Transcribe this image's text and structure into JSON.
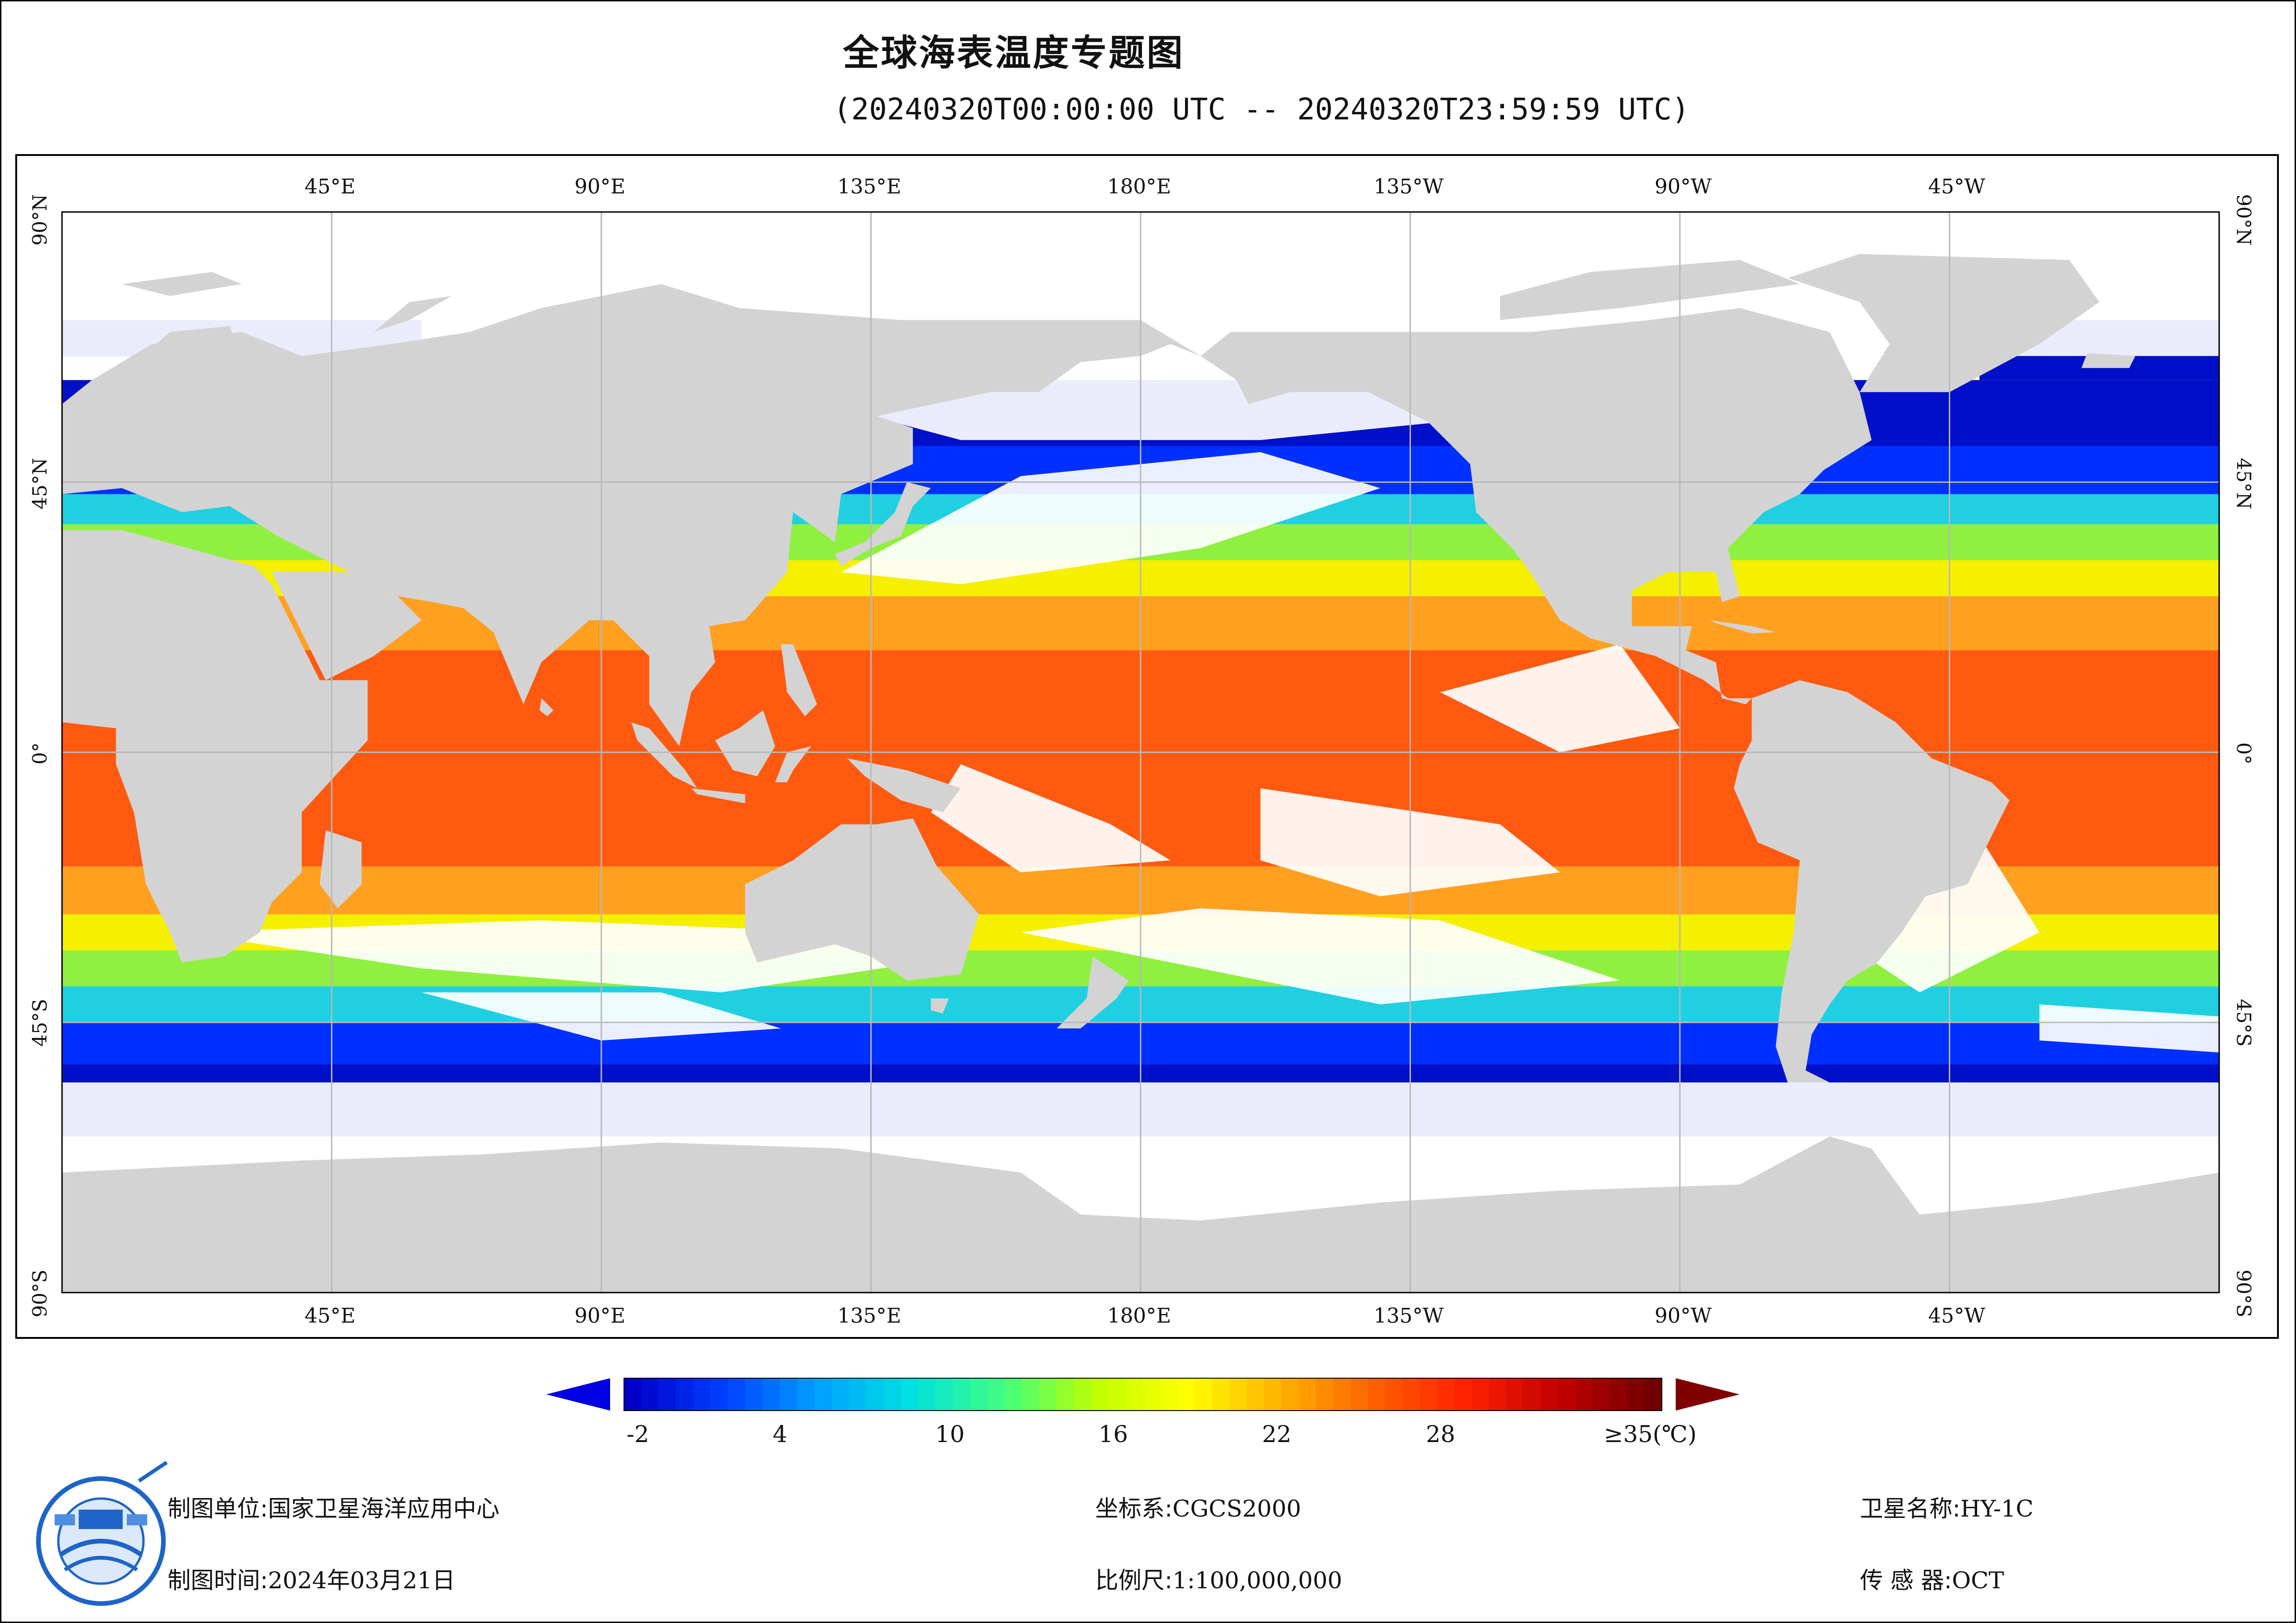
{
  "title": "全球海表温度专题图",
  "subtitle": "(20240320T00:00:00 UTC -- 20240320T23:59:59 UTC)",
  "map": {
    "longitude_labels": [
      "45°E",
      "90°E",
      "135°E",
      "180°E",
      "135°W",
      "90°W",
      "45°W"
    ],
    "latitude_labels": [
      "90°N",
      "45°N",
      "0°",
      "45°S",
      "90°S"
    ],
    "land_color": "#d3d3d3",
    "nodata_color": "#ffffff",
    "grid_color": "#b8b8b8"
  },
  "colorbar": {
    "ticks": [
      "-2",
      "4",
      "10",
      "16",
      "22",
      "28",
      "≥35(℃)"
    ],
    "colors": [
      "#0000c8",
      "#0040ff",
      "#00a0ff",
      "#00e0e0",
      "#40ff80",
      "#c0ff00",
      "#ffff00",
      "#ffb000",
      "#ff6000",
      "#ff2000",
      "#c00000",
      "#700000"
    ],
    "low_arrow_color": "#0000e0",
    "high_arrow_color": "#800000"
  },
  "info": {
    "unit_label": "制图单位:",
    "unit_value": "国家卫星海洋应用中心",
    "time_label": "制图时间:",
    "time_value": "2024年03月21日",
    "crs_label": "坐标系:",
    "crs_value": "CGCS2000",
    "scale_label": "比例尺:",
    "scale_value": "1:100,000,000",
    "satellite_label": "卫星名称:",
    "satellite_value": "HY-1C",
    "sensor_label": "传 感 器:",
    "sensor_value": "OCT"
  }
}
